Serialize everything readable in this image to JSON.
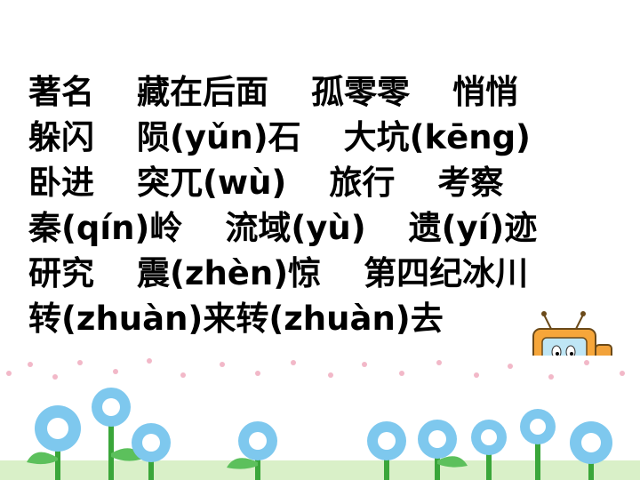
{
  "lines": [
    [
      "著名",
      "藏在后面",
      "孤零零",
      "悄悄"
    ],
    [
      "躲闪",
      "陨(yǔn)石",
      "大坑(kēng)"
    ],
    [
      "卧进",
      "突兀(wù)",
      "旅行",
      "考察"
    ],
    [
      "秦(qín)岭",
      "流域(yù)",
      "遗(yí)迹"
    ],
    [
      "研究",
      "震(zhèn)惊",
      "第四纪冰川"
    ],
    [
      "转(zhuàn)来转(zhuàn)去"
    ]
  ],
  "colors": {
    "text": "#000000",
    "flower": "#7ec8ee",
    "flower_center": "#ffffff",
    "stem": "#3aa63a",
    "ground": "#d9f0c8",
    "dots": "#f2b8c8"
  }
}
